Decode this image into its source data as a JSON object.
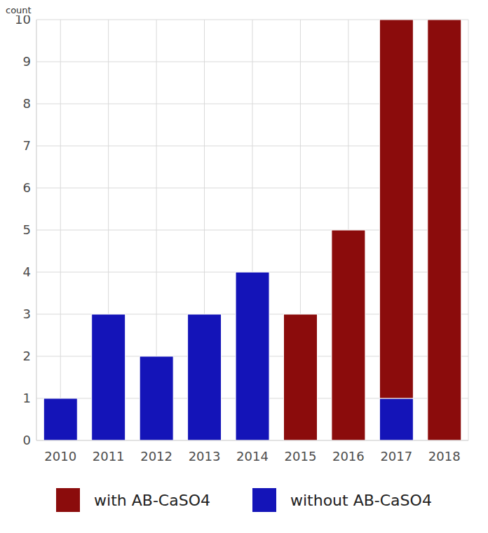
{
  "chart_data": {
    "type": "bar",
    "y_label": "count",
    "categories": [
      "2010",
      "2011",
      "2012",
      "2013",
      "2014",
      "2015",
      "2016",
      "2017",
      "2018"
    ],
    "series": [
      {
        "name": "with AB-CaSO4",
        "color": "#8b0c0c",
        "values": [
          0,
          0,
          0,
          0,
          0,
          3,
          5,
          9,
          10
        ]
      },
      {
        "name": "without AB-CaSO4",
        "color": "#1414b8",
        "values": [
          1,
          3,
          2,
          3,
          4,
          0,
          0,
          1,
          0
        ]
      }
    ],
    "ylim": [
      0,
      10
    ],
    "yticks": [
      0,
      1,
      2,
      3,
      4,
      5,
      6,
      7,
      8,
      9,
      10
    ],
    "grid": true,
    "stacked": true,
    "legend": "bottom"
  }
}
